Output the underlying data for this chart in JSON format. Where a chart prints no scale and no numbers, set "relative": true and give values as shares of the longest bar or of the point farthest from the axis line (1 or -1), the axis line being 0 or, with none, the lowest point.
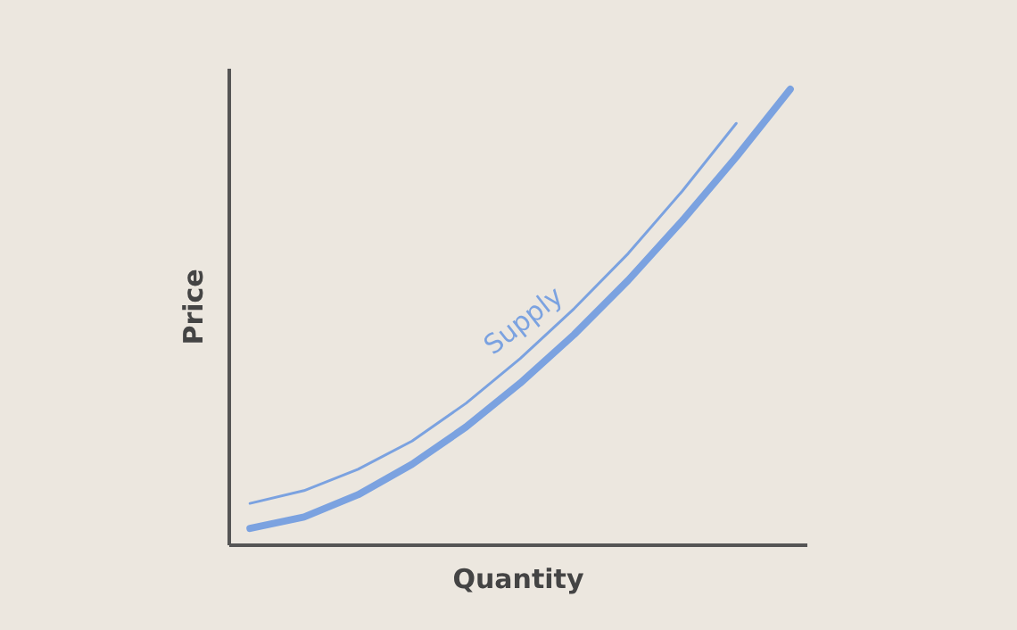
{
  "chart_data": {
    "type": "line",
    "relative": true,
    "xlabel": "Quantity",
    "ylabel": "Price",
    "categories": [
      null,
      null,
      null,
      null,
      null,
      null,
      null,
      null,
      null,
      null,
      null
    ],
    "series": [
      {
        "color": "#7ba2e0",
        "values": [
          0.035,
          0.06,
          0.109,
          0.176,
          0.258,
          0.354,
          0.461,
          0.58,
          0.711,
          0.851,
          1.0
        ]
      },
      {
        "name": "Supply",
        "color": "#7ba2e0",
        "values": [
          0.09,
          0.118,
          0.165,
          0.227,
          0.31,
          0.408,
          0.518,
          0.639,
          0.776,
          0.925,
          null
        ]
      }
    ],
    "marker": "none",
    "line_style": "solid"
  }
}
